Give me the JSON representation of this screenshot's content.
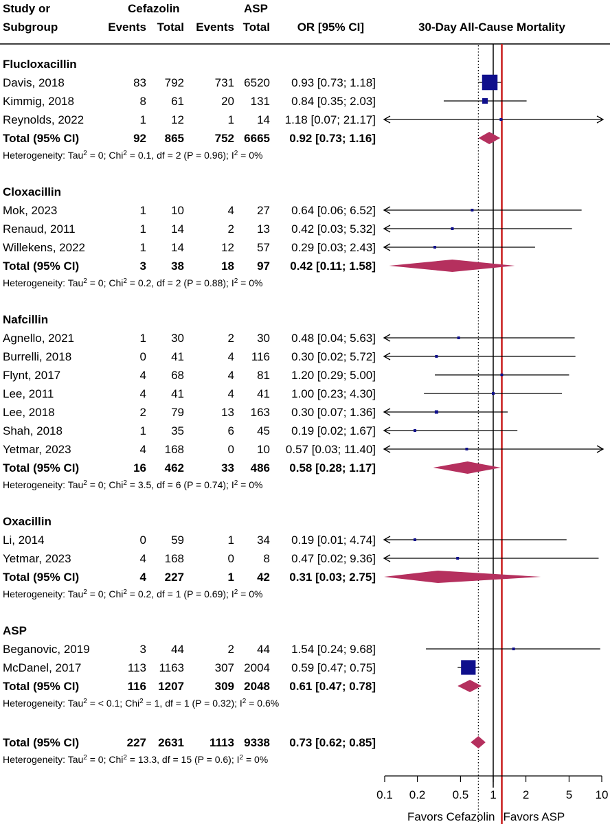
{
  "header": {
    "col_study_1": "Study or",
    "col_study_2": "Subgroup",
    "col_cefazolin": "Cefazolin",
    "col_asp": "ASP",
    "col_events_1": "Events",
    "col_total_1": "Total",
    "col_events_2": "Events",
    "col_total_2": "Total",
    "col_or": "OR [95% CI]",
    "plot_title": "30-Day All-Cause Mortality"
  },
  "chart_data": {
    "type": "forest",
    "title": "30-Day All-Cause Mortality",
    "x_scale": "log",
    "xlim": [
      0.1,
      10
    ],
    "x_ticks": [
      "0.1",
      "0.2",
      "0.5",
      "1",
      "2",
      "5",
      "10"
    ],
    "x_tick_values": [
      0.1,
      0.2,
      0.5,
      1,
      2,
      5,
      10
    ],
    "reference_solid": 1,
    "reference_dotted": 0.73,
    "reference_red": 1.2,
    "favors_left": "Favors Cefazolin",
    "favors_right": "Favors ASP",
    "groups": [
      {
        "name": "Flucloxacillin",
        "studies": [
          {
            "study": "Davis, 2018",
            "e1": "83",
            "n1": "792",
            "e2": "731",
            "n2": "6520",
            "ci": "0.93 [0.73;  1.18]",
            "or": 0.93,
            "lo": 0.73,
            "hi": 1.18,
            "weight": 18
          },
          {
            "study": "Kimmig, 2018",
            "e1": "8",
            "n1": "61",
            "e2": "20",
            "n2": "131",
            "ci": "0.84 [0.35;  2.03]",
            "or": 0.84,
            "lo": 0.35,
            "hi": 2.03,
            "weight": 4
          },
          {
            "study": "Reynolds, 2022",
            "e1": "1",
            "n1": "12",
            "e2": "1",
            "n2": "14",
            "ci": "1.18 [0.07; 21.17]",
            "or": 1.18,
            "lo": 0.07,
            "hi": 21.17,
            "weight": 1
          }
        ],
        "total": {
          "label": "Total (95% CI)",
          "e1": "92",
          "n1": "865",
          "e2": "752",
          "n2": "6665",
          "ci": "0.92 [0.73;  1.16]",
          "or": 0.92,
          "lo": 0.73,
          "hi": 1.16
        },
        "het": {
          "pre": "Heterogeneity: Tau",
          "mid1": " = 0; Chi",
          "mid2": " = 0.1, df = 2 (P = 0.96); I",
          "post": " = 0%",
          "sup": "2"
        }
      },
      {
        "name": "Cloxacillin",
        "studies": [
          {
            "study": "Mok, 2023",
            "e1": "1",
            "n1": "10",
            "e2": "4",
            "n2": "27",
            "ci": "0.64 [0.06;  6.52]",
            "or": 0.64,
            "lo": 0.06,
            "hi": 6.52,
            "weight": 1
          },
          {
            "study": "Renaud, 2011",
            "e1": "1",
            "n1": "14",
            "e2": "2",
            "n2": "13",
            "ci": "0.42 [0.03;  5.32]",
            "or": 0.42,
            "lo": 0.03,
            "hi": 5.32,
            "weight": 1
          },
          {
            "study": "Willekens, 2022",
            "e1": "1",
            "n1": "14",
            "e2": "12",
            "n2": "57",
            "ci": "0.29 [0.03;  2.43]",
            "or": 0.29,
            "lo": 0.03,
            "hi": 2.43,
            "weight": 1
          }
        ],
        "total": {
          "label": "Total (95% CI)",
          "e1": "3",
          "n1": "38",
          "e2": "18",
          "n2": "97",
          "ci": "0.42 [0.11;  1.58]",
          "or": 0.42,
          "lo": 0.11,
          "hi": 1.58
        },
        "het": {
          "pre": "Heterogeneity: Tau",
          "mid1": " = 0; Chi",
          "mid2": " = 0.2, df = 2 (P = 0.88); I",
          "post": " = 0%",
          "sup": "2"
        }
      },
      {
        "name": "Nafcillin",
        "studies": [
          {
            "study": "Agnello, 2021",
            "e1": "1",
            "n1": "30",
            "e2": "2",
            "n2": "30",
            "ci": "0.48 [0.04;  5.63]",
            "or": 0.48,
            "lo": 0.04,
            "hi": 5.63,
            "weight": 1
          },
          {
            "study": "Burrelli, 2018",
            "e1": "0",
            "n1": "41",
            "e2": "4",
            "n2": "116",
            "ci": "0.30 [0.02;  5.72]",
            "or": 0.3,
            "lo": 0.02,
            "hi": 5.72,
            "weight": 1
          },
          {
            "study": "Flynt, 2017",
            "e1": "4",
            "n1": "68",
            "e2": "4",
            "n2": "81",
            "ci": "1.20 [0.29;  5.00]",
            "or": 1.2,
            "lo": 0.29,
            "hi": 5.0,
            "weight": 2
          },
          {
            "study": "Lee, 2011",
            "e1": "4",
            "n1": "41",
            "e2": "4",
            "n2": "41",
            "ci": "1.00 [0.23;  4.30]",
            "or": 1.0,
            "lo": 0.23,
            "hi": 4.3,
            "weight": 2
          },
          {
            "study": "Lee, 2018",
            "e1": "2",
            "n1": "79",
            "e2": "13",
            "n2": "163",
            "ci": "0.30 [0.07;  1.36]",
            "or": 0.3,
            "lo": 0.07,
            "hi": 1.36,
            "weight": 2.5
          },
          {
            "study": "Shah, 2018",
            "e1": "1",
            "n1": "35",
            "e2": "6",
            "n2": "45",
            "ci": "0.19 [0.02;  1.67]",
            "or": 0.19,
            "lo": 0.02,
            "hi": 1.67,
            "weight": 1
          },
          {
            "study": "Yetmar, 2023",
            "e1": "4",
            "n1": "168",
            "e2": "0",
            "n2": "10",
            "ci": "0.57 [0.03; 11.40]",
            "or": 0.57,
            "lo": 0.03,
            "hi": 11.4,
            "weight": 1
          }
        ],
        "total": {
          "label": "Total (95% CI)",
          "e1": "16",
          "n1": "462",
          "e2": "33",
          "n2": "486",
          "ci": "0.58 [0.28;  1.17]",
          "or": 0.58,
          "lo": 0.28,
          "hi": 1.17
        },
        "het": {
          "pre": "Heterogeneity: Tau",
          "mid1": " = 0; Chi",
          "mid2": " = 3.5, df = 6 (P = 0.74); I",
          "post": " = 0%",
          "sup": "2"
        }
      },
      {
        "name": "Oxacillin",
        "studies": [
          {
            "study": "Li, 2014",
            "e1": "0",
            "n1": "59",
            "e2": "1",
            "n2": "34",
            "ci": "0.19 [0.01;  4.74]",
            "or": 0.19,
            "lo": 0.01,
            "hi": 4.74,
            "weight": 1
          },
          {
            "study": "Yetmar, 2023",
            "e1": "4",
            "n1": "168",
            "e2": "0",
            "n2": "8",
            "ci": "0.47 [0.02;  9.36]",
            "or": 0.47,
            "lo": 0.02,
            "hi": 9.36,
            "weight": 1
          }
        ],
        "total": {
          "label": "Total (95% CI)",
          "e1": "4",
          "n1": "227",
          "e2": "1",
          "n2": "42",
          "ci": "0.31 [0.03;  2.75]",
          "or": 0.31,
          "lo": 0.03,
          "hi": 2.75
        },
        "het": {
          "pre": "Heterogeneity: Tau",
          "mid1": " = 0; Chi",
          "mid2": " = 0.2, df = 1 (P = 0.69); I",
          "post": " = 0%",
          "sup": "2"
        }
      },
      {
        "name": "ASP",
        "studies": [
          {
            "study": "Beganovic, 2019",
            "e1": "3",
            "n1": "44",
            "e2": "2",
            "n2": "44",
            "ci": "1.54 [0.24;  9.68]",
            "or": 1.54,
            "lo": 0.24,
            "hi": 9.68,
            "weight": 1.5
          },
          {
            "study": "McDanel, 2017",
            "e1": "113",
            "n1": "1163",
            "e2": "307",
            "n2": "2004",
            "ci": "0.59 [0.47;  0.75]",
            "or": 0.59,
            "lo": 0.47,
            "hi": 0.75,
            "weight": 17
          }
        ],
        "total": {
          "label": "Total (95% CI)",
          "e1": "116",
          "n1": "1207",
          "e2": "309",
          "n2": "2048",
          "ci": "0.61 [0.47;  0.78]",
          "or": 0.61,
          "lo": 0.47,
          "hi": 0.78
        },
        "het": {
          "pre": "Heterogeneity: Tau",
          "mid1": " = < 0.1; Chi",
          "mid2": " = 1, df = 1 (P = 0.32); I",
          "post": " = 0.6%",
          "sup": "2"
        }
      }
    ],
    "overall": {
      "total": {
        "label": "Total (95% CI)",
        "e1": "227",
        "n1": "2631",
        "e2": "1113",
        "n2": "9338",
        "ci": "0.73 [0.62;  0.85]",
        "or": 0.73,
        "lo": 0.62,
        "hi": 0.85
      },
      "het": {
        "pre": "Heterogeneity: Tau",
        "mid1": " = 0; Chi",
        "mid2": " = 13.3, df = 15 (P = 0.6); I",
        "post": " = 0%",
        "sup": "2"
      }
    },
    "colors": {
      "square": "#0f0f8c",
      "diamond": "#b5305e",
      "red_line": "#c81a1a",
      "line": "#000000"
    }
  }
}
